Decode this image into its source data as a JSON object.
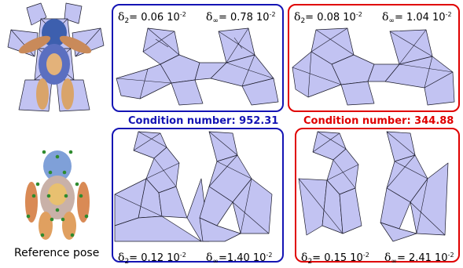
{
  "panels": {
    "top_blue": {
      "d2_sym": "δ",
      "d2_sub": "2",
      "d2_val": "= 0.06 10",
      "d2_exp": "-2",
      "dinf_sym": "δ",
      "dinf_sub": "∞",
      "dinf_val": "= 0.78 10",
      "dinf_exp": "-2"
    },
    "top_red": {
      "d2_sym": "δ",
      "d2_sub": "2",
      "d2_val": "= 0.08 10",
      "d2_exp": "-2",
      "dinf_sym": "δ",
      "dinf_sub": "∞",
      "dinf_val": "= 1.04 10",
      "dinf_exp": "-2"
    },
    "bottom_blue": {
      "d2_sym": "δ",
      "d2_sub": "2",
      "d2_val": "= 0.12 10",
      "d2_exp": "-2",
      "dinf_sym": "δ",
      "dinf_sub": "∞",
      "dinf_val": "=1.40 10",
      "dinf_exp": "-2"
    },
    "bottom_red": {
      "d2_sym": "δ",
      "d2_sub": "2",
      "d2_val": "= 0.15 10",
      "d2_exp": "-2",
      "dinf_sym": "δ",
      "dinf_sub": "∞",
      "dinf_val": "= 2.41 10",
      "dinf_exp": "-2"
    }
  },
  "condition": {
    "blue": "Condition number: 952.31",
    "red": "Condition number: 344.88"
  },
  "caption": "Reference pose",
  "colors": {
    "blue_frame": "#1414b4",
    "red_frame": "#e00000",
    "mesh_fill": "#c2c3f2"
  }
}
